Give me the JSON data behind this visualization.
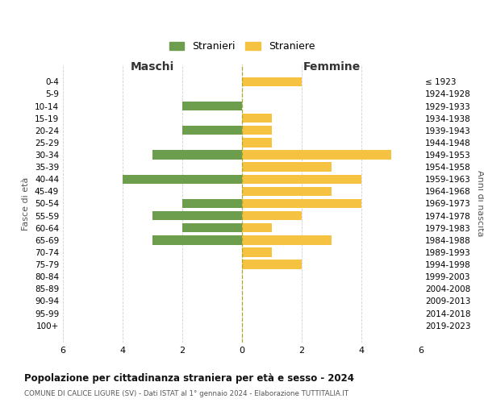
{
  "age_groups": [
    "0-4",
    "5-9",
    "10-14",
    "15-19",
    "20-24",
    "25-29",
    "30-34",
    "35-39",
    "40-44",
    "45-49",
    "50-54",
    "55-59",
    "60-64",
    "65-69",
    "70-74",
    "75-79",
    "80-84",
    "85-89",
    "90-94",
    "95-99",
    "100+"
  ],
  "birth_years": [
    "2019-2023",
    "2014-2018",
    "2009-2013",
    "2004-2008",
    "1999-2003",
    "1994-1998",
    "1989-1993",
    "1984-1988",
    "1979-1983",
    "1974-1978",
    "1969-1973",
    "1964-1968",
    "1959-1963",
    "1954-1958",
    "1949-1953",
    "1944-1948",
    "1939-1943",
    "1934-1938",
    "1929-1933",
    "1924-1928",
    "≤ 1923"
  ],
  "maschi": [
    0,
    0,
    2,
    0,
    2,
    0,
    3,
    0,
    4,
    0,
    2,
    3,
    2,
    3,
    0,
    0,
    0,
    0,
    0,
    0,
    0
  ],
  "femmine": [
    2,
    0,
    0,
    1,
    1,
    1,
    5,
    3,
    4,
    3,
    4,
    2,
    1,
    3,
    1,
    2,
    0,
    0,
    0,
    0,
    0
  ],
  "maschi_color": "#6d9e4e",
  "femmine_color": "#f5c242",
  "title": "Popolazione per cittadinanza straniera per età e sesso - 2024",
  "subtitle": "COMUNE DI CALICE LIGURE (SV) - Dati ISTAT al 1° gennaio 2024 - Elaborazione TUTTITALIA.IT",
  "xlabel_left": "Maschi",
  "xlabel_right": "Femmine",
  "ylabel_left": "Fasce di età",
  "ylabel_right": "Anni di nascita",
  "legend_maschi": "Stranieri",
  "legend_femmine": "Straniere",
  "xlim": 6,
  "background_color": "#ffffff",
  "grid_color": "#d0d0d0",
  "bar_height": 0.75
}
